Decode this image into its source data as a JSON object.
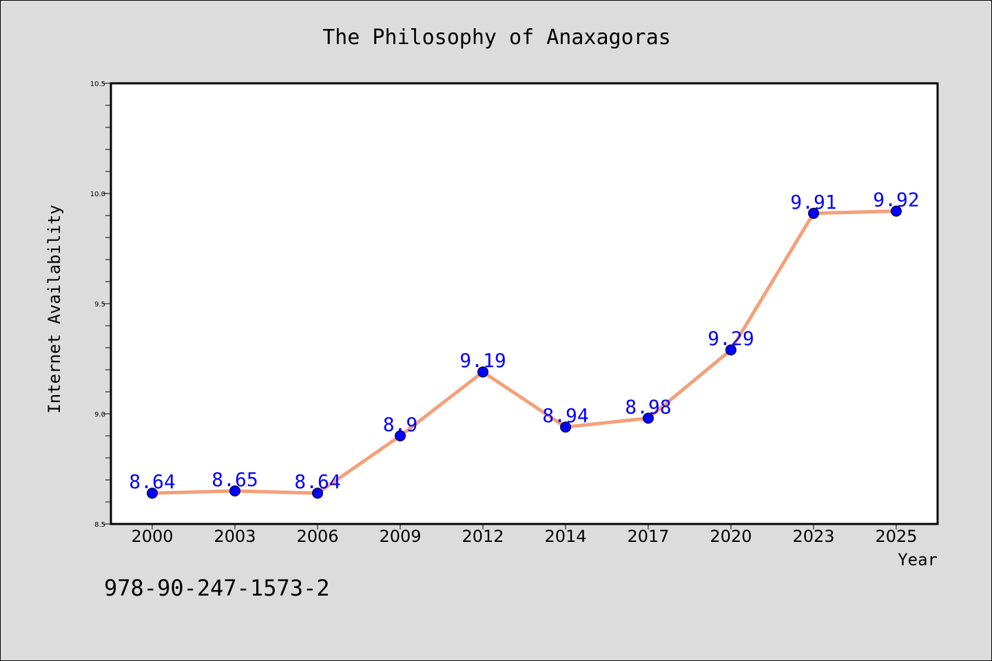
{
  "chart_data": {
    "type": "line",
    "title": "The Philosophy of Anaxagoras",
    "xlabel": "Year",
    "ylabel": "Internet Availability",
    "categories": [
      "2000",
      "2003",
      "2006",
      "2009",
      "2012",
      "2014",
      "2017",
      "2020",
      "2023",
      "2025"
    ],
    "series": [
      {
        "values": [
          8.64,
          8.65,
          8.64,
          8.9,
          9.19,
          8.94,
          8.98,
          9.29,
          9.91,
          9.92
        ],
        "data_labels": [
          "8.64",
          "8.65",
          "8.64",
          "8.9",
          "9.19",
          "8.94",
          "8.98",
          "9.29",
          "9.91",
          "9.92"
        ],
        "line_color": "#f4a07a",
        "marker_color": "#0000ff"
      }
    ],
    "ylim": [
      8.5,
      10.5
    ],
    "y_major_ticks": [
      "8.5",
      "9.0",
      "9.5",
      "10.0",
      "10.5"
    ],
    "y_minor_step": 0.1,
    "grid": false,
    "legend": "none"
  },
  "footer_text": "978-90-247-1573-2",
  "colors": {
    "figure_background": "#dcdcdc",
    "plot_background": "#ffffff",
    "data_label": "#0000ff",
    "text": "#000000"
  }
}
